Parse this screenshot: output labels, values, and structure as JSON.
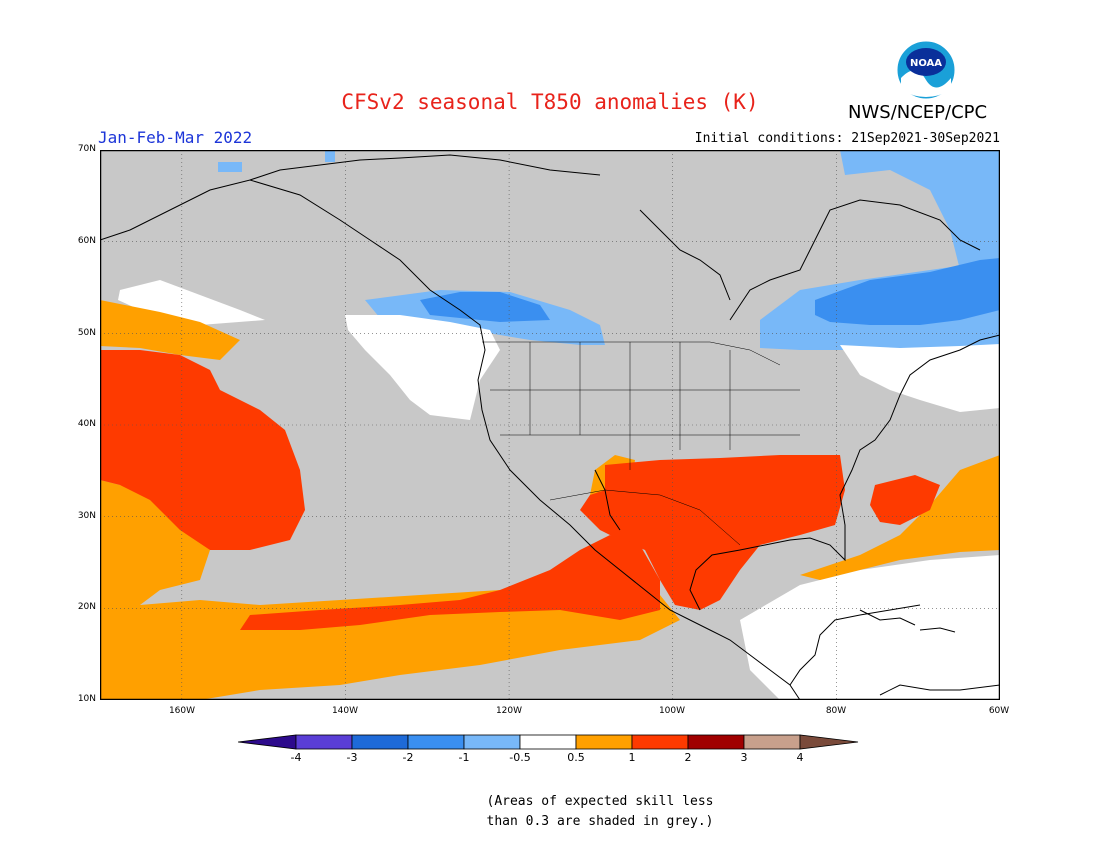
{
  "header": {
    "title": "CFSv2 seasonal T850 anomalies (K)",
    "title_color": "#e8231b",
    "period": "Jan-Feb-Mar 2022",
    "period_color": "#1c35d8",
    "initial_conditions": "Initial conditions: 21Sep2021-30Sep2021",
    "agency": "NWS/NCEP/CPC",
    "logo_text": "NOAA"
  },
  "map": {
    "projection": "equirectangular",
    "lon_range": [
      -170,
      -60
    ],
    "lat_range": [
      10,
      70
    ],
    "lat_labels": [
      "70N",
      "60N",
      "50N",
      "40N",
      "30N",
      "20N",
      "10N"
    ],
    "lon_labels": [
      "160W",
      "140W",
      "120W",
      "100W",
      "80W",
      "60W"
    ],
    "grid": "dotted",
    "background_color": "#c8c8c8",
    "regions": [
      {
        "category": "1 to 2",
        "area": "Southern US / northern Mexico",
        "color": "#fe3a00"
      },
      {
        "category": "1 to 2",
        "area": "Northeast Pacific near 30N-45N",
        "color": "#fe3a00"
      },
      {
        "category": "1 to 2",
        "area": "Western Atlantic near 30N-33N",
        "color": "#fe3a00"
      },
      {
        "category": "0.5 to 1",
        "area": "Tropical eastern Pacific",
        "color": "#ffa000"
      },
      {
        "category": "0.5 to 1",
        "area": "Western Atlantic / Gulf of Mexico",
        "color": "#ffa000"
      },
      {
        "category": "-1 to -0.5",
        "area": "Southeastern Canada",
        "color": "#4d9bf5"
      },
      {
        "category": "-1 to -0.5",
        "area": "Canadian Pacific coast",
        "color": "#4d9bf5"
      },
      {
        "category": "-0.5 to 0.5",
        "area": "Northwest US coast / Caribbean",
        "color": "#ffffff"
      }
    ]
  },
  "colorbar": {
    "labels": [
      "-4",
      "-3",
      "-2",
      "-1",
      "-0.5",
      "0.5",
      "1",
      "2",
      "3",
      "4"
    ],
    "colors": [
      "#2d0a8c",
      "#5a3ed6",
      "#1e6ad8",
      "#3a8ff0",
      "#78b8f8",
      "#ffffff",
      "#ffa000",
      "#fe3a00",
      "#a00000",
      "#c8a08c",
      "#7a4a3a"
    ]
  },
  "footnote": {
    "line1": "(Areas of expected skill less",
    "line2": "than 0.3 are shaded in grey.)"
  }
}
